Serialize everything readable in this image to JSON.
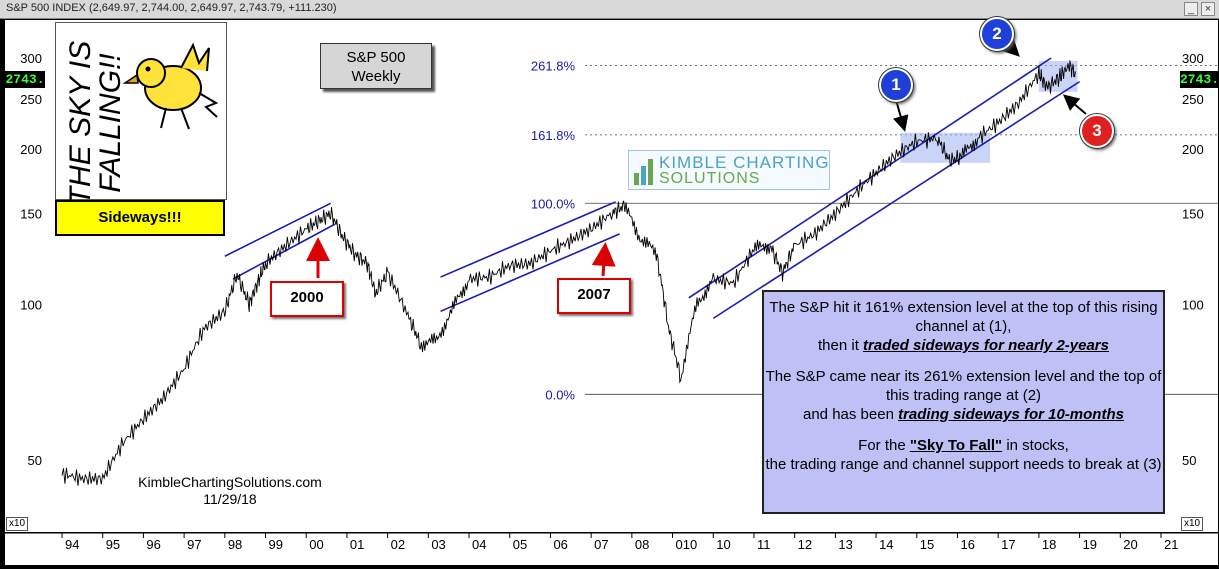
{
  "window": {
    "title": "S&P 500 INDEX (2,649.97, 2,744.00, 2,649.97, 2,743.79, +111.230)"
  },
  "header_box": {
    "line1": "S&P 500",
    "line2": "Weekly"
  },
  "cartoon": {
    "text": "THE SKY IS FALLING!!"
  },
  "sideways_label": "Sideways!!!",
  "year_boxes": {
    "a": "2000",
    "b": "2007"
  },
  "logo": {
    "line1": "KIMBLE CHARTING",
    "line2": "SOLUTIONS"
  },
  "markers": {
    "m1": "1",
    "m2": "2",
    "m3": "3"
  },
  "note": {
    "p1_a": "The S&P hit it 161% extension level at the top of this rising channel at (1),",
    "p1_b": "then it ",
    "p1_emph": "traded sideways for nearly 2-years",
    "p2_a": "The S&P came near its 261% extension level and the top of this trading range at (2)",
    "p2_b": "and has been ",
    "p2_emph": "trading sideways for 10-months",
    "p3_a": "For the ",
    "p3_q": "\"Sky To Fall\"",
    "p3_b": " in stocks,",
    "p3_c": "the trading range and channel support needs to break at (3)"
  },
  "credit": {
    "site": "KimbleChartingSolutions.com",
    "date": "11/29/18"
  },
  "price_badge": "2743.",
  "x10_label": "x10",
  "colors": {
    "price_line": "#000000",
    "channel": "#1a1ab5",
    "fib": "#1a1aa8",
    "range_fill": "#9fb0f0",
    "note_fill": "#bfc0f5",
    "arrow_red": "#dd0000"
  },
  "chart_data": {
    "type": "line",
    "title": "S&P 500 Weekly",
    "y_scale": "log",
    "y_ticks": [
      50,
      100,
      150,
      200,
      250,
      300
    ],
    "x_ticks": [
      "94",
      "95",
      "96",
      "97",
      "98",
      "99",
      "00",
      "01",
      "02",
      "03",
      "04",
      "05",
      "06",
      "07",
      "08",
      "010",
      "10",
      "11",
      "12",
      "13",
      "14",
      "15",
      "16",
      "17",
      "18",
      "19",
      "20",
      "21"
    ],
    "fib_levels": [
      {
        "label": "0.0%",
        "value": 67
      },
      {
        "label": "100.0%",
        "value": 157
      },
      {
        "label": "161.8%",
        "value": 213
      },
      {
        "label": "261.8%",
        "value": 290
      }
    ],
    "series": [
      {
        "x": [
          1994.0,
          1994.5,
          1995.0,
          1995.5,
          1996.0,
          1996.5,
          1997.0,
          1997.5,
          1998.0,
          1998.3,
          1998.6,
          1998.8,
          1999.0,
          1999.5,
          2000.0,
          2000.3,
          2000.6,
          2000.9,
          2001.2,
          2001.5,
          2001.7,
          2002.0,
          2002.5,
          2002.8,
          2003.2,
          2003.6,
          2004.0,
          2004.5,
          2005.0,
          2005.5,
          2006.0,
          2006.5,
          2007.0,
          2007.5,
          2007.8,
          2008.2,
          2008.6,
          2008.9,
          2009.2,
          2009.6,
          2010.0,
          2010.5,
          2011.0,
          2011.4,
          2011.7,
          2012.0,
          2012.5,
          2013.0,
          2013.5,
          2014.0,
          2014.5,
          2015.0,
          2015.5,
          2015.8,
          2016.1,
          2016.5,
          2017.0,
          2017.5,
          2018.0,
          2018.2,
          2018.5,
          2018.75,
          2018.9
        ],
        "y": [
          47,
          46,
          46,
          54,
          60,
          66,
          75,
          90,
          97,
          114,
          100,
          110,
          120,
          130,
          140,
          145,
          150,
          135,
          125,
          120,
          105,
          115,
          95,
          84,
          85,
          98,
          112,
          113,
          119,
          120,
          127,
          133,
          140,
          150,
          155,
          135,
          125,
          90,
          72,
          100,
          112,
          110,
          128,
          130,
          115,
          130,
          137,
          150,
          165,
          180,
          195,
          207,
          210,
          190,
          193,
          210,
          225,
          245,
          280,
          263,
          275,
          290,
          280
        ]
      }
    ]
  }
}
